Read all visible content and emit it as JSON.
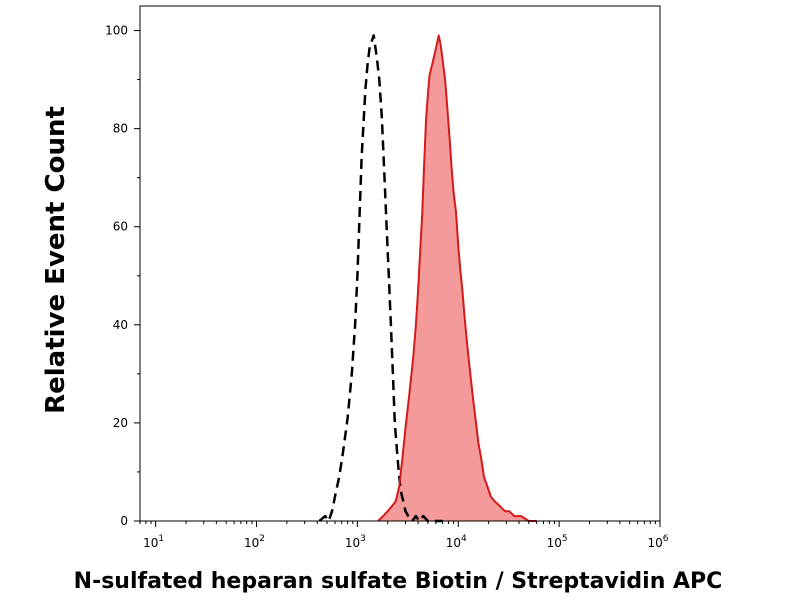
{
  "chart_data": {
    "type": "area",
    "xlabel": "N-sulfated heparan sulfate Biotin / Streptavidin APC",
    "ylabel": "Relative Event Count",
    "x_scale": "log",
    "xlim": [
      7,
      1000000
    ],
    "ylim": [
      0,
      105
    ],
    "x_ticks": [
      {
        "value": 10,
        "base": "10",
        "exp": "1"
      },
      {
        "value": 100,
        "base": "10",
        "exp": "2"
      },
      {
        "value": 1000,
        "base": "10",
        "exp": "3"
      },
      {
        "value": 10000,
        "base": "10",
        "exp": "4"
      },
      {
        "value": 100000,
        "base": "10",
        "exp": "5"
      },
      {
        "value": 1000000,
        "base": "10",
        "exp": "6"
      }
    ],
    "y_ticks": [
      0,
      20,
      40,
      60,
      80,
      100
    ],
    "series": [
      {
        "style": "dashed",
        "color": "#000000",
        "fill": "none",
        "points": [
          [
            420,
            0
          ],
          [
            480,
            1
          ],
          [
            520,
            0
          ],
          [
            560,
            2
          ],
          [
            600,
            5
          ],
          [
            660,
            9
          ],
          [
            720,
            14
          ],
          [
            800,
            21
          ],
          [
            880,
            30
          ],
          [
            950,
            40
          ],
          [
            1000,
            50
          ],
          [
            1050,
            62
          ],
          [
            1100,
            74
          ],
          [
            1150,
            81
          ],
          [
            1200,
            88
          ],
          [
            1260,
            93
          ],
          [
            1330,
            97
          ],
          [
            1400,
            98
          ],
          [
            1450,
            99
          ],
          [
            1500,
            97
          ],
          [
            1570,
            94
          ],
          [
            1650,
            90
          ],
          [
            1750,
            82
          ],
          [
            1850,
            71
          ],
          [
            1950,
            60
          ],
          [
            2050,
            50
          ],
          [
            2150,
            40
          ],
          [
            2250,
            30
          ],
          [
            2350,
            20
          ],
          [
            2500,
            13
          ],
          [
            2600,
            9
          ],
          [
            2700,
            6
          ],
          [
            2850,
            4
          ],
          [
            3000,
            2
          ],
          [
            3200,
            1
          ],
          [
            3500,
            0
          ],
          [
            3800,
            1
          ],
          [
            4100,
            0
          ],
          [
            4500,
            1
          ],
          [
            5000,
            0
          ],
          [
            6000,
            0
          ],
          [
            7000,
            0
          ]
        ]
      },
      {
        "style": "solid",
        "color": "#d41a1a",
        "fill": "#f59a9a",
        "points": [
          [
            1600,
            0
          ],
          [
            1800,
            1
          ],
          [
            2000,
            2
          ],
          [
            2200,
            3
          ],
          [
            2400,
            4
          ],
          [
            2600,
            7
          ],
          [
            2800,
            13
          ],
          [
            3000,
            19
          ],
          [
            3200,
            24
          ],
          [
            3400,
            29
          ],
          [
            3600,
            34
          ],
          [
            3800,
            40
          ],
          [
            4000,
            47
          ],
          [
            4200,
            55
          ],
          [
            4400,
            63
          ],
          [
            4600,
            73
          ],
          [
            4800,
            82
          ],
          [
            5000,
            87
          ],
          [
            5200,
            91
          ],
          [
            5500,
            93
          ],
          [
            5800,
            95
          ],
          [
            6100,
            97
          ],
          [
            6400,
            99
          ],
          [
            6700,
            97
          ],
          [
            7000,
            94
          ],
          [
            7400,
            90
          ],
          [
            7800,
            84
          ],
          [
            8200,
            78
          ],
          [
            8600,
            72
          ],
          [
            9000,
            67
          ],
          [
            9500,
            63
          ],
          [
            10000,
            56
          ],
          [
            10500,
            51
          ],
          [
            11000,
            47
          ],
          [
            11500,
            42
          ],
          [
            12000,
            38
          ],
          [
            12700,
            33
          ],
          [
            13500,
            28
          ],
          [
            14200,
            24
          ],
          [
            15000,
            20
          ],
          [
            15800,
            16
          ],
          [
            16800,
            13
          ],
          [
            18000,
            9
          ],
          [
            19500,
            7
          ],
          [
            21000,
            5
          ],
          [
            23000,
            4
          ],
          [
            26000,
            3
          ],
          [
            29000,
            2
          ],
          [
            32000,
            2
          ],
          [
            36000,
            1
          ],
          [
            42000,
            1
          ],
          [
            50000,
            0
          ],
          [
            60000,
            0
          ]
        ]
      }
    ]
  }
}
